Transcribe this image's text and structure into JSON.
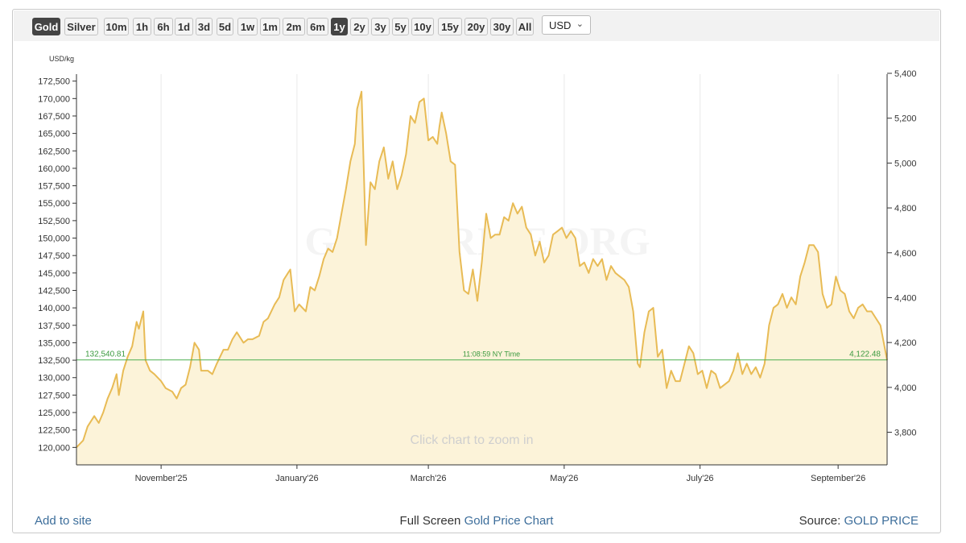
{
  "toolbar": {
    "metals": [
      {
        "label": "Gold",
        "active": true
      },
      {
        "label": "Silver",
        "active": false
      }
    ],
    "ranges": [
      {
        "label": "10m",
        "active": false
      },
      {
        "label": "1h",
        "active": false
      },
      {
        "label": "6h",
        "active": false
      },
      {
        "label": "1d",
        "active": false
      },
      {
        "label": "3d",
        "active": false
      },
      {
        "label": "5d",
        "active": false
      },
      {
        "label": "1w",
        "active": false
      },
      {
        "label": "1m",
        "active": false
      },
      {
        "label": "2m",
        "active": false
      },
      {
        "label": "6m",
        "active": false
      },
      {
        "label": "1y",
        "active": true
      },
      {
        "label": "2y",
        "active": false
      },
      {
        "label": "3y",
        "active": false
      },
      {
        "label": "5y",
        "active": false
      },
      {
        "label": "10y",
        "active": false
      },
      {
        "label": "15y",
        "active": false
      },
      {
        "label": "20y",
        "active": false
      },
      {
        "label": "30y",
        "active": false
      },
      {
        "label": "All",
        "active": false
      }
    ],
    "currency": "USD",
    "currency_icon": "chevron-down-icon"
  },
  "chart_data": {
    "type": "area",
    "left_unit_label": "USD/kg",
    "watermark": "GOLDPRICE.ORG",
    "hint": "Click chart to zoom in",
    "line_color": "#e8bb55",
    "fill_color": "#fcf3d9",
    "current_line_color": "#4caf50",
    "current": {
      "left_value": 132540.81,
      "left_label": "132,540.81",
      "right_value": 4122.48,
      "right_label": "4,122.48",
      "time_label": "11:08:59 NY Time"
    },
    "y_left": {
      "min": 117500,
      "max": 173500,
      "ticks": [
        120000,
        122500,
        125000,
        127500,
        130000,
        132500,
        135000,
        137500,
        140000,
        142500,
        145000,
        147500,
        150000,
        152500,
        155000,
        157500,
        160000,
        162500,
        165000,
        167500,
        170000,
        172500
      ],
      "tick_labels": [
        "120,000",
        "122,500",
        "125,000",
        "127,500",
        "130,000",
        "132,500",
        "135,000",
        "137,500",
        "140,000",
        "142,500",
        "145,000",
        "147,500",
        "150,000",
        "152,500",
        "155,000",
        "157,500",
        "160,000",
        "162,500",
        "165,000",
        "167,500",
        "170,000",
        "172,500"
      ]
    },
    "y_right": {
      "ticks": [
        3800,
        4000,
        4200,
        4400,
        4600,
        4800,
        5000,
        5200,
        5400
      ],
      "tick_labels": [
        "3,800",
        "4,000",
        "4,200",
        "4,400",
        "4,600",
        "4,800",
        "5,000",
        "5,200",
        "5,400"
      ]
    },
    "x_axis": {
      "start": "2025-09-24",
      "end": "2026-09-23",
      "ticks": [
        "2025-11-01",
        "2026-01-01",
        "2026-03-01",
        "2026-05-01",
        "2026-07-01",
        "2026-09-01"
      ],
      "tick_labels": [
        "November'25",
        "January'26",
        "March'26",
        "May'26",
        "July'26",
        "September'26"
      ]
    },
    "series": [
      {
        "values": [
          [
            "2025-09-24",
            120000
          ],
          [
            "2025-09-27",
            121000
          ],
          [
            "2025-09-29",
            123000
          ],
          [
            "2025-10-02",
            124500
          ],
          [
            "2025-10-04",
            123500
          ],
          [
            "2025-10-06",
            125000
          ],
          [
            "2025-10-08",
            127000
          ],
          [
            "2025-10-10",
            128500
          ],
          [
            "2025-10-12",
            130500
          ],
          [
            "2025-10-13",
            127500
          ],
          [
            "2025-10-15",
            131000
          ],
          [
            "2025-10-17",
            133000
          ],
          [
            "2025-10-19",
            134500
          ],
          [
            "2025-10-21",
            138000
          ],
          [
            "2025-10-22",
            137000
          ],
          [
            "2025-10-24",
            139500
          ],
          [
            "2025-10-25",
            132500
          ],
          [
            "2025-10-27",
            131000
          ],
          [
            "2025-10-29",
            130500
          ],
          [
            "2025-11-01",
            129500
          ],
          [
            "2025-11-03",
            128500
          ],
          [
            "2025-11-06",
            128000
          ],
          [
            "2025-11-08",
            127000
          ],
          [
            "2025-11-10",
            128500
          ],
          [
            "2025-11-12",
            129000
          ],
          [
            "2025-11-14",
            131500
          ],
          [
            "2025-11-16",
            135000
          ],
          [
            "2025-11-18",
            134000
          ],
          [
            "2025-11-19",
            131000
          ],
          [
            "2025-11-22",
            131000
          ],
          [
            "2025-11-24",
            130500
          ],
          [
            "2025-11-26",
            132000
          ],
          [
            "2025-11-29",
            134000
          ],
          [
            "2025-12-01",
            134000
          ],
          [
            "2025-12-03",
            135500
          ],
          [
            "2025-12-05",
            136500
          ],
          [
            "2025-12-08",
            135000
          ],
          [
            "2025-12-10",
            135500
          ],
          [
            "2025-12-12",
            135500
          ],
          [
            "2025-12-15",
            136000
          ],
          [
            "2025-12-17",
            138000
          ],
          [
            "2025-12-19",
            138500
          ],
          [
            "2025-12-22",
            140500
          ],
          [
            "2025-12-24",
            141500
          ],
          [
            "2025-12-26",
            144000
          ],
          [
            "2025-12-28",
            145000
          ],
          [
            "2025-12-29",
            145500
          ],
          [
            "2025-12-31",
            139500
          ],
          [
            "2026-01-02",
            140500
          ],
          [
            "2026-01-05",
            139500
          ],
          [
            "2026-01-07",
            143000
          ],
          [
            "2026-01-09",
            142500
          ],
          [
            "2026-01-11",
            144500
          ],
          [
            "2026-01-13",
            147000
          ],
          [
            "2026-01-15",
            148500
          ],
          [
            "2026-01-17",
            148000
          ],
          [
            "2026-01-19",
            150000
          ],
          [
            "2026-01-21",
            153500
          ],
          [
            "2026-01-23",
            157000
          ],
          [
            "2026-01-25",
            161000
          ],
          [
            "2026-01-27",
            163500
          ],
          [
            "2026-01-28",
            168500
          ],
          [
            "2026-01-30",
            171000
          ],
          [
            "2026-02-01",
            149000
          ],
          [
            "2026-02-03",
            158000
          ],
          [
            "2026-02-05",
            157000
          ],
          [
            "2026-02-07",
            161000
          ],
          [
            "2026-02-09",
            163000
          ],
          [
            "2026-02-11",
            158500
          ],
          [
            "2026-02-13",
            161000
          ],
          [
            "2026-02-15",
            157000
          ],
          [
            "2026-02-17",
            159000
          ],
          [
            "2026-02-19",
            162000
          ],
          [
            "2026-02-21",
            167500
          ],
          [
            "2026-02-23",
            166500
          ],
          [
            "2026-02-25",
            169500
          ],
          [
            "2026-02-27",
            170000
          ],
          [
            "2026-03-01",
            164000
          ],
          [
            "2026-03-03",
            164500
          ],
          [
            "2026-03-05",
            163500
          ],
          [
            "2026-03-06",
            166000
          ],
          [
            "2026-03-07",
            168000
          ],
          [
            "2026-03-09",
            165000
          ],
          [
            "2026-03-11",
            161000
          ],
          [
            "2026-03-13",
            160500
          ],
          [
            "2026-03-15",
            148000
          ],
          [
            "2026-03-17",
            142500
          ],
          [
            "2026-03-19",
            142000
          ],
          [
            "2026-03-21",
            145500
          ],
          [
            "2026-03-23",
            141000
          ],
          [
            "2026-03-25",
            146500
          ],
          [
            "2026-03-27",
            153500
          ],
          [
            "2026-03-29",
            150000
          ],
          [
            "2026-03-31",
            150500
          ],
          [
            "2026-04-02",
            150500
          ],
          [
            "2026-04-04",
            153000
          ],
          [
            "2026-04-06",
            152500
          ],
          [
            "2026-04-08",
            155000
          ],
          [
            "2026-04-10",
            153500
          ],
          [
            "2026-04-12",
            154500
          ],
          [
            "2026-04-14",
            151500
          ],
          [
            "2026-04-16",
            150500
          ],
          [
            "2026-04-18",
            147500
          ],
          [
            "2026-04-20",
            149500
          ],
          [
            "2026-04-22",
            146500
          ],
          [
            "2026-04-24",
            147500
          ],
          [
            "2026-04-26",
            150500
          ],
          [
            "2026-04-28",
            151000
          ],
          [
            "2026-04-30",
            151500
          ],
          [
            "2026-05-02",
            150000
          ],
          [
            "2026-05-04",
            151000
          ],
          [
            "2026-05-06",
            150000
          ],
          [
            "2026-05-08",
            146000
          ],
          [
            "2026-05-10",
            146500
          ],
          [
            "2026-05-12",
            145000
          ],
          [
            "2026-05-14",
            147000
          ],
          [
            "2026-05-16",
            146000
          ],
          [
            "2026-05-18",
            147000
          ],
          [
            "2026-05-20",
            144000
          ],
          [
            "2026-05-22",
            146000
          ],
          [
            "2026-05-24",
            145000
          ],
          [
            "2026-05-26",
            144500
          ],
          [
            "2026-05-28",
            144000
          ],
          [
            "2026-05-30",
            143000
          ],
          [
            "2026-06-01",
            139500
          ],
          [
            "2026-06-03",
            132000
          ],
          [
            "2026-06-04",
            131500
          ],
          [
            "2026-06-06",
            136500
          ],
          [
            "2026-06-08",
            139500
          ],
          [
            "2026-06-10",
            140000
          ],
          [
            "2026-06-12",
            133000
          ],
          [
            "2026-06-14",
            134000
          ],
          [
            "2026-06-16",
            128500
          ],
          [
            "2026-06-18",
            131000
          ],
          [
            "2026-06-20",
            129500
          ],
          [
            "2026-06-22",
            129500
          ],
          [
            "2026-06-24",
            132000
          ],
          [
            "2026-06-26",
            134500
          ],
          [
            "2026-06-28",
            133500
          ],
          [
            "2026-06-30",
            130500
          ],
          [
            "2026-07-02",
            131000
          ],
          [
            "2026-07-04",
            128500
          ],
          [
            "2026-07-06",
            131000
          ],
          [
            "2026-07-08",
            130500
          ],
          [
            "2026-07-10",
            128500
          ],
          [
            "2026-07-12",
            129000
          ],
          [
            "2026-07-14",
            129500
          ],
          [
            "2026-07-16",
            131000
          ],
          [
            "2026-07-18",
            133500
          ],
          [
            "2026-07-20",
            130500
          ],
          [
            "2026-07-22",
            132000
          ],
          [
            "2026-07-24",
            130500
          ],
          [
            "2026-07-26",
            131500
          ],
          [
            "2026-07-28",
            130000
          ],
          [
            "2026-07-30",
            132000
          ],
          [
            "2026-08-01",
            137500
          ],
          [
            "2026-08-03",
            140000
          ],
          [
            "2026-08-05",
            140500
          ],
          [
            "2026-08-07",
            142000
          ],
          [
            "2026-08-09",
            140000
          ],
          [
            "2026-08-11",
            141500
          ],
          [
            "2026-08-13",
            140500
          ],
          [
            "2026-08-15",
            144500
          ],
          [
            "2026-08-17",
            146500
          ],
          [
            "2026-08-19",
            149000
          ],
          [
            "2026-08-21",
            149000
          ],
          [
            "2026-08-23",
            148000
          ],
          [
            "2026-08-25",
            142000
          ],
          [
            "2026-08-27",
            140000
          ],
          [
            "2026-08-29",
            140500
          ],
          [
            "2026-08-31",
            144500
          ],
          [
            "2026-09-02",
            142500
          ],
          [
            "2026-09-04",
            142000
          ],
          [
            "2026-09-06",
            139500
          ],
          [
            "2026-09-08",
            138500
          ],
          [
            "2026-09-10",
            140000
          ],
          [
            "2026-09-12",
            140500
          ],
          [
            "2026-09-14",
            139500
          ],
          [
            "2026-09-16",
            139500
          ],
          [
            "2026-09-20",
            137500
          ],
          [
            "2026-09-23",
            132500
          ]
        ]
      }
    ]
  },
  "footer": {
    "add_to_site": "Add to site",
    "center_prefix": "Full Screen",
    "center_link": "Gold Price Chart",
    "right_prefix": "Source:",
    "right_link": "GOLD PRICE"
  }
}
